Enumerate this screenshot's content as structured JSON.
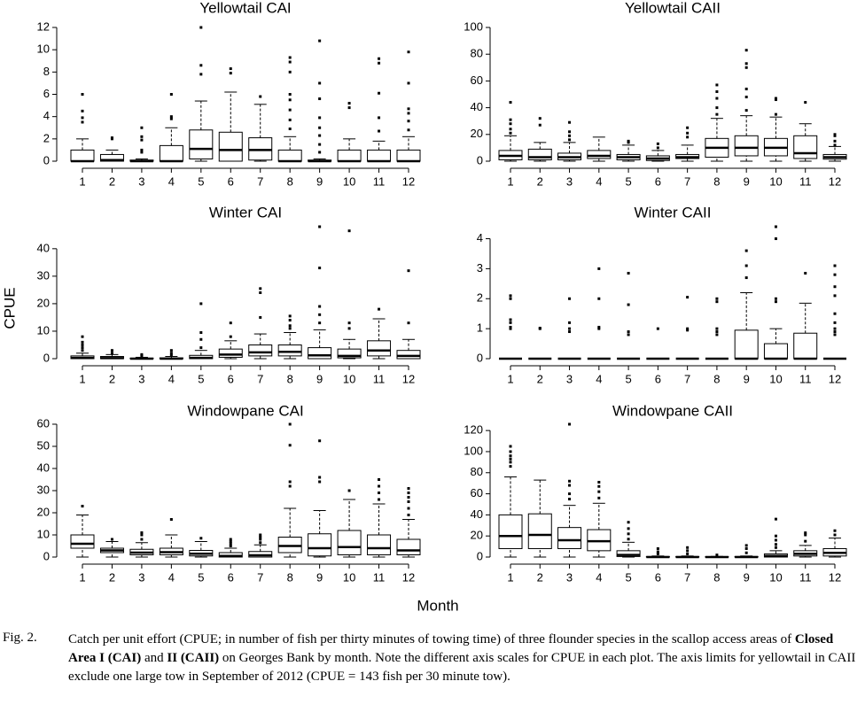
{
  "chart_data": [
    {
      "type": "box",
      "title": "Yellowtail CAI",
      "categories": [
        "1",
        "2",
        "3",
        "4",
        "5",
        "6",
        "7",
        "8",
        "9",
        "10",
        "11",
        "12"
      ],
      "ylim": [
        0,
        12
      ],
      "yticks": [
        0,
        2,
        4,
        6,
        8,
        10,
        12
      ],
      "boxes": [
        {
          "whislo": 0,
          "q1": 0,
          "median": 0,
          "q3": 1,
          "whishi": 2,
          "fliers": [
            3.5,
            3.9,
            4.5,
            6
          ]
        },
        {
          "whislo": 0,
          "q1": 0,
          "median": 0.1,
          "q3": 0.6,
          "whishi": 1,
          "fliers": [
            2,
            2.1
          ]
        },
        {
          "whislo": 0,
          "q1": 0,
          "median": 0,
          "q3": 0.1,
          "whishi": 0.2,
          "fliers": [
            0.8,
            1,
            1.9,
            2.2,
            3
          ]
        },
        {
          "whislo": 0,
          "q1": 0,
          "median": 0,
          "q3": 1.4,
          "whishi": 3,
          "fliers": [
            3.8,
            4,
            6
          ]
        },
        {
          "whislo": 0,
          "q1": 0.2,
          "median": 1.1,
          "q3": 2.8,
          "whishi": 5.4,
          "fliers": [
            7.8,
            8.6,
            12
          ]
        },
        {
          "whislo": 0,
          "q1": 0,
          "median": 1,
          "q3": 2.6,
          "whishi": 6.2,
          "fliers": [
            7.9,
            8.3
          ]
        },
        {
          "whislo": 0,
          "q1": 0.1,
          "median": 1,
          "q3": 2.1,
          "whishi": 5.1,
          "fliers": [
            5.8
          ]
        },
        {
          "whislo": 0,
          "q1": 0,
          "median": 0,
          "q3": 1,
          "whishi": 2.2,
          "fliers": [
            2.9,
            3.7,
            4.6,
            5.5,
            6,
            8,
            8.9,
            9.3
          ]
        },
        {
          "whislo": 0,
          "q1": 0,
          "median": 0,
          "q3": 0.1,
          "whishi": 0.2,
          "fliers": [
            0.8,
            1.5,
            2.3,
            3,
            3.9,
            5.6,
            7,
            10.8
          ]
        },
        {
          "whislo": 0,
          "q1": 0,
          "median": 0,
          "q3": 1,
          "whishi": 2,
          "fliers": [
            4.8,
            5.2
          ]
        },
        {
          "whislo": 0,
          "q1": 0,
          "median": 0,
          "q3": 1,
          "whishi": 1.8,
          "fliers": [
            2.7,
            3.9,
            6.1,
            8.8,
            9.2
          ]
        },
        {
          "whislo": 0,
          "q1": 0,
          "median": 0,
          "q3": 1,
          "whishi": 2.2,
          "fliers": [
            2.8,
            3.6,
            4.3,
            4.7,
            7,
            9.8
          ]
        }
      ]
    },
    {
      "type": "box",
      "title": "Yellowtail CAII",
      "categories": [
        "1",
        "2",
        "3",
        "4",
        "5",
        "6",
        "7",
        "8",
        "9",
        "10",
        "11",
        "12"
      ],
      "ylim": [
        0,
        100
      ],
      "yticks": [
        0,
        20,
        40,
        60,
        80,
        100
      ],
      "boxes": [
        {
          "whislo": 0,
          "q1": 1,
          "median": 4,
          "q3": 8,
          "whishi": 19,
          "fliers": [
            21,
            24,
            28,
            31,
            44
          ]
        },
        {
          "whislo": 0,
          "q1": 1,
          "median": 3,
          "q3": 9,
          "whishi": 14,
          "fliers": [
            27,
            32
          ]
        },
        {
          "whislo": 0,
          "q1": 1,
          "median": 3,
          "q3": 6,
          "whishi": 14,
          "fliers": [
            16,
            19,
            22,
            29
          ]
        },
        {
          "whislo": 0,
          "q1": 2,
          "median": 4,
          "q3": 8,
          "whishi": 18,
          "fliers": []
        },
        {
          "whislo": 0,
          "q1": 1,
          "median": 3,
          "q3": 5,
          "whishi": 12,
          "fliers": [
            14,
            15
          ]
        },
        {
          "whislo": 0,
          "q1": 0.5,
          "median": 2,
          "q3": 4,
          "whishi": 8,
          "fliers": [
            10,
            13
          ]
        },
        {
          "whislo": 0,
          "q1": 2,
          "median": 3,
          "q3": 5,
          "whishi": 12,
          "fliers": [
            18,
            21,
            25
          ]
        },
        {
          "whislo": 0,
          "q1": 3,
          "median": 10,
          "q3": 17,
          "whishi": 32,
          "fliers": [
            35,
            40,
            47,
            52,
            57
          ]
        },
        {
          "whislo": 0,
          "q1": 4,
          "median": 10,
          "q3": 19,
          "whishi": 34,
          "fliers": [
            38,
            48,
            54,
            70,
            73,
            83
          ]
        },
        {
          "whislo": 0,
          "q1": 4,
          "median": 10,
          "q3": 17,
          "whishi": 33,
          "fliers": [
            35,
            46,
            47
          ]
        },
        {
          "whislo": 0,
          "q1": 2,
          "median": 6,
          "q3": 19,
          "whishi": 28,
          "fliers": [
            44
          ]
        },
        {
          "whislo": 0,
          "q1": 1.5,
          "median": 3,
          "q3": 5,
          "whishi": 11,
          "fliers": [
            12,
            15,
            19,
            20
          ]
        }
      ]
    },
    {
      "type": "box",
      "title": "Winter CAI",
      "categories": [
        "1",
        "2",
        "3",
        "4",
        "5",
        "6",
        "7",
        "8",
        "9",
        "10",
        "11",
        "12"
      ],
      "ylim": [
        0,
        48
      ],
      "yticks": [
        0,
        10,
        20,
        30,
        40
      ],
      "boxes": [
        {
          "whislo": 0,
          "q1": 0,
          "median": 0.3,
          "q3": 1,
          "whishi": 2,
          "fliers": [
            3,
            4,
            5,
            6,
            8
          ]
        },
        {
          "whislo": 0,
          "q1": 0,
          "median": 0.2,
          "q3": 0.8,
          "whishi": 1.5,
          "fliers": [
            2,
            3
          ]
        },
        {
          "whislo": 0,
          "q1": 0,
          "median": 0,
          "q3": 0.2,
          "whishi": 0.5,
          "fliers": [
            1,
            1.5
          ]
        },
        {
          "whislo": 0,
          "q1": 0,
          "median": 0,
          "q3": 0.3,
          "whishi": 0.8,
          "fliers": [
            1.2,
            2,
            3
          ]
        },
        {
          "whislo": 0,
          "q1": 0,
          "median": 0.3,
          "q3": 1.2,
          "whishi": 3,
          "fliers": [
            4,
            7,
            9.5,
            20
          ]
        },
        {
          "whislo": 0,
          "q1": 0.5,
          "median": 1.5,
          "q3": 3.5,
          "whishi": 6.5,
          "fliers": [
            8,
            13
          ]
        },
        {
          "whislo": 0,
          "q1": 1,
          "median": 2.3,
          "q3": 5,
          "whishi": 9,
          "fliers": [
            15,
            24,
            25.5
          ]
        },
        {
          "whislo": 0,
          "q1": 1,
          "median": 2.5,
          "q3": 5,
          "whishi": 9.5,
          "fliers": [
            11,
            12,
            14,
            15.5
          ]
        },
        {
          "whislo": 0,
          "q1": 0,
          "median": 1.2,
          "q3": 4,
          "whishi": 10.5,
          "fliers": [
            13,
            16,
            19,
            33,
            48
          ]
        },
        {
          "whislo": 0,
          "q1": 0.3,
          "median": 1,
          "q3": 3.5,
          "whishi": 7,
          "fliers": [
            11,
            13,
            46.5
          ]
        },
        {
          "whislo": 0,
          "q1": 1,
          "median": 3,
          "q3": 6.5,
          "whishi": 14.5,
          "fliers": [
            18
          ]
        },
        {
          "whislo": 0,
          "q1": 0,
          "median": 1,
          "q3": 3,
          "whishi": 7,
          "fliers": [
            13,
            32
          ]
        }
      ]
    },
    {
      "type": "box",
      "title": "Winter CAII",
      "categories": [
        "1",
        "2",
        "3",
        "4",
        "5",
        "6",
        "7",
        "8",
        "9",
        "10",
        "11",
        "12"
      ],
      "ylim": [
        0,
        4.4
      ],
      "yticks": [
        0,
        1,
        2,
        3,
        4
      ],
      "boxes": [
        {
          "whislo": 0,
          "q1": 0,
          "median": 0,
          "q3": 0,
          "whishi": 0,
          "fliers": [
            1,
            1.05,
            1.2,
            1.3,
            2,
            2.1
          ]
        },
        {
          "whislo": 0,
          "q1": 0,
          "median": 0,
          "q3": 0,
          "whishi": 0,
          "fliers": [
            1,
            1.02
          ]
        },
        {
          "whislo": 0,
          "q1": 0,
          "median": 0,
          "q3": 0,
          "whishi": 0,
          "fliers": [
            0.9,
            1,
            1.2,
            2
          ]
        },
        {
          "whislo": 0,
          "q1": 0,
          "median": 0,
          "q3": 0,
          "whishi": 0,
          "fliers": [
            1,
            1.05,
            2,
            3
          ]
        },
        {
          "whislo": 0,
          "q1": 0,
          "median": 0,
          "q3": 0,
          "whishi": 0,
          "fliers": [
            0.8,
            0.9,
            1.8,
            2.85
          ]
        },
        {
          "whislo": 0,
          "q1": 0,
          "median": 0,
          "q3": 0,
          "whishi": 0,
          "fliers": [
            1
          ]
        },
        {
          "whislo": 0,
          "q1": 0,
          "median": 0,
          "q3": 0,
          "whishi": 0,
          "fliers": [
            0.95,
            1,
            2.05
          ]
        },
        {
          "whislo": 0,
          "q1": 0,
          "median": 0,
          "q3": 0,
          "whishi": 0,
          "fliers": [
            0.8,
            0.9,
            1,
            1.9,
            2
          ]
        },
        {
          "whislo": 0,
          "q1": 0,
          "median": 0,
          "q3": 0.95,
          "whishi": 2.2,
          "fliers": [
            2.7,
            3.1,
            3.6
          ]
        },
        {
          "whislo": 0,
          "q1": 0,
          "median": 0,
          "q3": 0.5,
          "whishi": 1,
          "fliers": [
            1.9,
            2,
            4,
            4.4
          ]
        },
        {
          "whislo": 0,
          "q1": 0,
          "median": 0,
          "q3": 0.85,
          "whishi": 1.85,
          "fliers": [
            2.85
          ]
        },
        {
          "whislo": 0,
          "q1": 0,
          "median": 0,
          "q3": 0,
          "whishi": 0,
          "fliers": [
            0.8,
            0.9,
            1,
            1.2,
            1.5,
            2.1,
            2.4,
            2.8,
            3.1
          ]
        }
      ]
    },
    {
      "type": "box",
      "title": "Windowpane CAI",
      "categories": [
        "1",
        "2",
        "3",
        "4",
        "5",
        "6",
        "7",
        "8",
        "9",
        "10",
        "11",
        "12"
      ],
      "ylim": [
        0,
        60
      ],
      "yticks": [
        0,
        10,
        20,
        30,
        40,
        50,
        60
      ],
      "boxes": [
        {
          "whislo": 0,
          "q1": 4,
          "median": 6,
          "q3": 10,
          "whishi": 19,
          "fliers": [
            23
          ]
        },
        {
          "whislo": 0,
          "q1": 2,
          "median": 3,
          "q3": 4,
          "whishi": 7,
          "fliers": [
            8
          ]
        },
        {
          "whislo": 0,
          "q1": 1,
          "median": 2,
          "q3": 3.5,
          "whishi": 6.5,
          "fliers": [
            8,
            10,
            11
          ]
        },
        {
          "whislo": 0,
          "q1": 1,
          "median": 2.2,
          "q3": 4,
          "whishi": 10,
          "fliers": [
            17
          ]
        },
        {
          "whislo": 0,
          "q1": 0.5,
          "median": 1.5,
          "q3": 3,
          "whishi": 7,
          "fliers": [
            8.5
          ]
        },
        {
          "whislo": 0,
          "q1": 0,
          "median": 0.5,
          "q3": 2,
          "whishi": 4,
          "fliers": [
            5,
            6,
            7,
            8
          ]
        },
        {
          "whislo": 0,
          "q1": 0,
          "median": 0.8,
          "q3": 2.5,
          "whishi": 5.5,
          "fliers": [
            6.5,
            8,
            9,
            10
          ]
        },
        {
          "whislo": 0,
          "q1": 2,
          "median": 5,
          "q3": 9,
          "whishi": 22,
          "fliers": [
            32,
            34,
            50.5,
            60
          ]
        },
        {
          "whislo": 0,
          "q1": 0.5,
          "median": 4,
          "q3": 10.5,
          "whishi": 21,
          "fliers": [
            34,
            36,
            52.5
          ]
        },
        {
          "whislo": 0,
          "q1": 1,
          "median": 4.5,
          "q3": 12,
          "whishi": 26,
          "fliers": [
            30
          ]
        },
        {
          "whislo": 0,
          "q1": 1,
          "median": 4,
          "q3": 10,
          "whishi": 24,
          "fliers": [
            26,
            29,
            32,
            35
          ]
        },
        {
          "whislo": 0,
          "q1": 1,
          "median": 3,
          "q3": 8,
          "whishi": 17,
          "fliers": [
            19,
            22,
            25,
            27,
            29,
            31
          ]
        }
      ]
    },
    {
      "type": "box",
      "title": "Windowpane CAII",
      "categories": [
        "1",
        "2",
        "3",
        "4",
        "5",
        "6",
        "7",
        "8",
        "9",
        "10",
        "11",
        "12"
      ],
      "ylim": [
        0,
        126
      ],
      "yticks": [
        0,
        20,
        40,
        60,
        80,
        100,
        120
      ],
      "boxes": [
        {
          "whislo": 0,
          "q1": 8,
          "median": 20,
          "q3": 40,
          "whishi": 76,
          "fliers": [
            86,
            90,
            93,
            96,
            100,
            105
          ]
        },
        {
          "whislo": 0,
          "q1": 8,
          "median": 21,
          "q3": 41,
          "whishi": 73,
          "fliers": []
        },
        {
          "whislo": 0,
          "q1": 8,
          "median": 16,
          "q3": 28,
          "whishi": 49,
          "fliers": [
            55,
            60,
            68,
            72,
            126
          ]
        },
        {
          "whislo": 0,
          "q1": 6,
          "median": 15,
          "q3": 26,
          "whishi": 51,
          "fliers": [
            56,
            62,
            67,
            71
          ]
        },
        {
          "whislo": 0,
          "q1": 0.5,
          "median": 2,
          "q3": 6,
          "whishi": 14,
          "fliers": [
            17,
            22,
            27,
            33
          ]
        },
        {
          "whislo": 0,
          "q1": 0,
          "median": 0,
          "q3": 0.5,
          "whishi": 1,
          "fliers": [
            3,
            5,
            8
          ]
        },
        {
          "whislo": 0,
          "q1": 0,
          "median": 0,
          "q3": 0.5,
          "whishi": 1,
          "fliers": [
            3,
            6,
            9
          ]
        },
        {
          "whislo": 0,
          "q1": 0,
          "median": 0,
          "q3": 0.3,
          "whishi": 0.6,
          "fliers": [
            2
          ]
        },
        {
          "whislo": 0,
          "q1": 0,
          "median": 0,
          "q3": 0.5,
          "whishi": 1,
          "fliers": [
            4,
            8,
            11
          ]
        },
        {
          "whislo": 0,
          "q1": 0,
          "median": 1,
          "q3": 3,
          "whishi": 6,
          "fliers": [
            9,
            12,
            16,
            20,
            36
          ]
        },
        {
          "whislo": 0,
          "q1": 1,
          "median": 3,
          "q3": 6,
          "whishi": 11,
          "fliers": [
            15,
            21,
            23
          ]
        },
        {
          "whislo": 0,
          "q1": 1,
          "median": 4,
          "q3": 8,
          "whishi": 18,
          "fliers": [
            21,
            25
          ]
        }
      ]
    }
  ],
  "figure": {
    "ylabel": "CPUE",
    "xlabel": "Month",
    "caption": {
      "label": "Fig. 2.",
      "parts": [
        {
          "text": "Catch per unit effort (CPUE; in number of fish per thirty minutes of towing time) of three flounder species in the scallop access areas of ",
          "bold": false
        },
        {
          "text": "Closed Area I (CAI)",
          "bold": true
        },
        {
          "text": " and ",
          "bold": false
        },
        {
          "text": "II (CAII)",
          "bold": true
        },
        {
          "text": " on Georges Bank by month. Note the different axis scales for CPUE in each plot. The axis limits for yellowtail in CAII exclude one large tow in September of 2012 (CPUE = 143 fish per 30 minute tow).",
          "bold": false
        }
      ]
    }
  }
}
